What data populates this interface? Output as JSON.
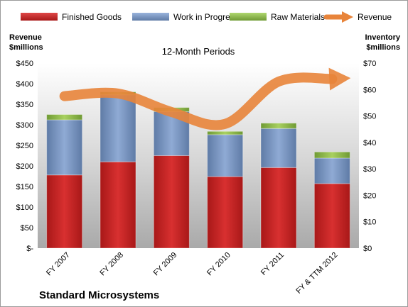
{
  "chart_data": {
    "type": "bar",
    "subtitle": "12-Month Periods",
    "company": "Standard Microsystems",
    "categories": [
      "FY 2007",
      "FY 2008",
      "FY 2009",
      "FY 2010",
      "FY 2011",
      "FY & TTM 2012"
    ],
    "stacked": true,
    "series": [
      {
        "name": "Finished Goods",
        "axis": "left",
        "color": "#d42a2a",
        "values": [
          178,
          210,
          225,
          174,
          196,
          157
        ]
      },
      {
        "name": "Work in Progress",
        "axis": "left",
        "color": "#7f9fcc",
        "values": [
          134,
          163,
          107,
          102,
          95,
          62
        ]
      },
      {
        "name": "Raw Materials",
        "axis": "left",
        "color": "#8fbf4a",
        "values": [
          13,
          7,
          10,
          8,
          13,
          15
        ]
      },
      {
        "name": "Revenue",
        "axis": "right",
        "type": "line",
        "color": "#e8843a",
        "values": [
          57.5,
          58.5,
          51.5,
          47,
          63,
          64
        ]
      }
    ],
    "left_axis": {
      "label_line1": "Revenue",
      "label_line2": "$millions",
      "ylim": [
        0,
        450
      ],
      "ticks": [
        0,
        50,
        100,
        150,
        200,
        250,
        300,
        350,
        400,
        450
      ],
      "tick_labels": [
        "$-",
        "$50",
        "$100",
        "$150",
        "$200",
        "$250",
        "$300",
        "$350",
        "$400",
        "$450"
      ]
    },
    "right_axis": {
      "label_line1": "Inventory",
      "label_line2": "$millions",
      "ylim": [
        0,
        70
      ],
      "ticks": [
        0,
        10,
        20,
        30,
        40,
        50,
        60,
        70
      ],
      "tick_labels": [
        "$0",
        "$10",
        "$20",
        "$30",
        "$40",
        "$50",
        "$60",
        "$70"
      ]
    },
    "legend_position": "top"
  }
}
